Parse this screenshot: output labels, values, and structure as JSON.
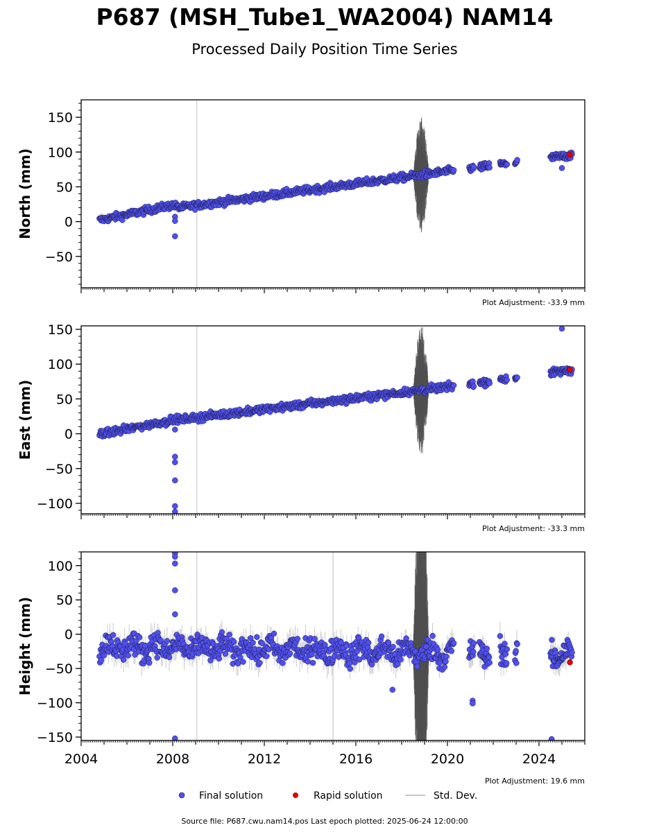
{
  "figure": {
    "title": "P687 (MSH_Tube1_WA2004) NAM14",
    "subtitle": "Processed Daily Position Time Series",
    "source_text": "Source file: P687.cwu.nam14.pos  Last epoch plotted: 2025-06-24 12:00:00"
  },
  "legend": {
    "final_label": "Final solution",
    "rapid_label": "Rapid solution",
    "std_label": "Std. Dev."
  },
  "colors": {
    "final_fill": "#5050f0",
    "final_edge": "#1a1a40",
    "rapid": "#e00000",
    "stddev": "#c8c8c8",
    "stddev_dark": "#505050",
    "gap_line": "#d4d4d4"
  },
  "chart_data": [
    {
      "type": "scatter",
      "ylabel": "North (mm)",
      "adjustment": "Plot Adjustment: -33.9 mm",
      "xlim": [
        2004.0,
        2026.0
      ],
      "ylim": [
        -95,
        175
      ],
      "yticks": [
        "150",
        "100",
        "50",
        "0",
        "−50"
      ],
      "ytick_values": [
        150,
        100,
        50,
        0,
        -50
      ],
      "trend": {
        "x": [
          2004.8,
          2008.05,
          2008.25,
          2019.5,
          2025.5
        ],
        "y": [
          2,
          24,
          20,
          70,
          96
        ]
      },
      "outliers": [
        {
          "x": 2008.1,
          "y": 7
        },
        {
          "x": 2008.1,
          "y": 1
        },
        {
          "x": 2008.1,
          "y": -21
        },
        {
          "x": 2025.0,
          "y": 77
        }
      ],
      "noise_window": {
        "x_start": 2018.5,
        "x_end": 2019.2,
        "spread": 85
      },
      "rapid": [
        {
          "x": 2025.35,
          "y": 96
        }
      ]
    },
    {
      "type": "scatter",
      "ylabel": "East (mm)",
      "adjustment": "Plot Adjustment: -33.3 mm",
      "xlim": [
        2004.0,
        2026.0
      ],
      "ylim": [
        -115,
        155
      ],
      "yticks": [
        "150",
        "100",
        "50",
        "0",
        "−50",
        "−100"
      ],
      "ytick_values": [
        150,
        100,
        50,
        0,
        -50,
        -100
      ],
      "trend": {
        "x": [
          2004.8,
          2008.05,
          2008.25,
          2019.5,
          2025.5
        ],
        "y": [
          -1,
          20,
          20,
          65,
          92
        ]
      },
      "outliers": [
        {
          "x": 2008.1,
          "y": 6
        },
        {
          "x": 2008.1,
          "y": -33
        },
        {
          "x": 2008.1,
          "y": -41
        },
        {
          "x": 2008.1,
          "y": -67
        },
        {
          "x": 2008.1,
          "y": -104
        },
        {
          "x": 2008.1,
          "y": -112
        },
        {
          "x": 2025.0,
          "y": 151
        }
      ],
      "noise_window": {
        "x_start": 2018.5,
        "x_end": 2019.2,
        "spread": 95
      },
      "rapid": [
        {
          "x": 2025.35,
          "y": 92
        }
      ]
    },
    {
      "type": "scatter",
      "ylabel": "Height (mm)",
      "adjustment": "Plot Adjustment: 19.6 mm",
      "xlim": [
        2004.0,
        2026.0
      ],
      "ylim": [
        -155,
        120
      ],
      "yticks": [
        "100",
        "50",
        "0",
        "−50",
        "−100",
        "−150"
      ],
      "ytick_values": [
        100,
        50,
        0,
        -50,
        -100,
        -150
      ],
      "xticks": [
        "2004",
        "2008",
        "2012",
        "2016",
        "2020",
        "2024"
      ],
      "xtick_values": [
        2004,
        2008,
        2012,
        2016,
        2020,
        2024
      ],
      "trend": {
        "x": [
          2004.8,
          2025.5
        ],
        "y": [
          -18,
          -30
        ]
      },
      "outliers": [
        {
          "x": 2008.1,
          "y": 118
        },
        {
          "x": 2008.1,
          "y": 113
        },
        {
          "x": 2008.1,
          "y": 103
        },
        {
          "x": 2008.1,
          "y": 64
        },
        {
          "x": 2008.1,
          "y": 29
        },
        {
          "x": 2008.1,
          "y": -152
        },
        {
          "x": 2021.1,
          "y": -97
        },
        {
          "x": 2021.1,
          "y": -101
        },
        {
          "x": 2024.55,
          "y": -153
        },
        {
          "x": 2017.6,
          "y": -81
        }
      ],
      "noise_window": {
        "x_start": 2018.5,
        "x_end": 2019.2,
        "spread": 300
      },
      "rapid": [
        {
          "x": 2025.35,
          "y": -41
        }
      ]
    }
  ]
}
